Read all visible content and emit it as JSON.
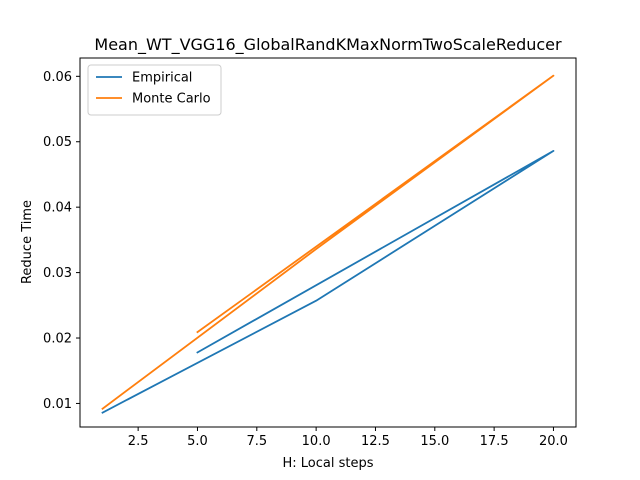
{
  "chart_data": {
    "type": "line",
    "title": "Mean_WT_VGG16_GlobalRandKMaxNormTwoScaleReducer",
    "xlabel": "H: Local steps",
    "ylabel": "Reduce Time",
    "xlim": [
      0.05,
      20.95
    ],
    "ylim": [
      0.0064,
      0.0628
    ],
    "xticks": [
      2.5,
      5.0,
      7.5,
      10.0,
      12.5,
      15.0,
      17.5,
      20.0
    ],
    "xtick_labels": [
      "2.5",
      "5.0",
      "7.5",
      "10.0",
      "12.5",
      "15.0",
      "17.5",
      "20.0"
    ],
    "yticks": [
      0.01,
      0.02,
      0.03,
      0.04,
      0.05,
      0.06
    ],
    "ytick_labels": [
      "0.01",
      "0.02",
      "0.03",
      "0.04",
      "0.05",
      "0.06"
    ],
    "grid": false,
    "legend": "top-left",
    "series": [
      {
        "name": "Empirical",
        "color": "#1f77b4",
        "x": [
          1,
          10,
          20,
          5
        ],
        "y": [
          0.0086,
          0.0257,
          0.0486,
          0.0178
        ]
      },
      {
        "name": "Monte Carlo",
        "color": "#ff7f0e",
        "x": [
          1,
          10,
          20,
          5
        ],
        "y": [
          0.0092,
          0.0336,
          0.0601,
          0.0209
        ]
      }
    ]
  }
}
